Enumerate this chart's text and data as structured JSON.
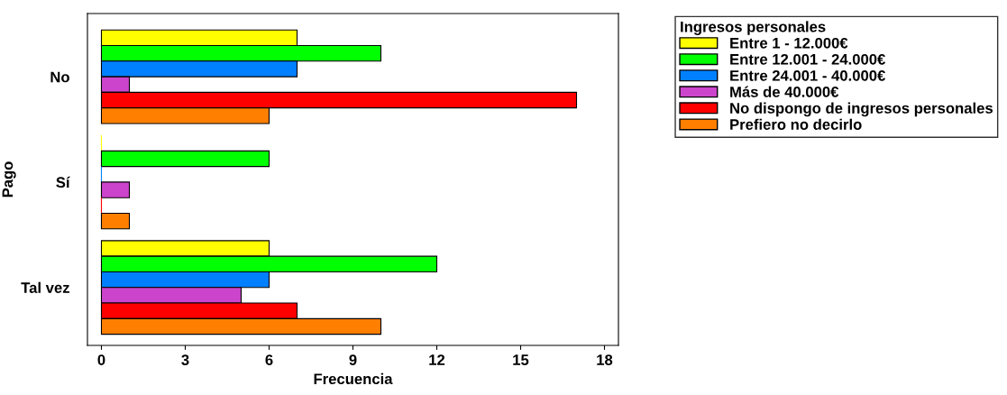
{
  "chart_data": {
    "type": "bar",
    "orientation": "horizontal",
    "xlabel": "Frecuencia",
    "ylabel": "Pago",
    "legend_title": "Ingresos personales",
    "legend": "top right",
    "categories": [
      "No",
      "Sí",
      "Tal vez"
    ],
    "series": [
      {
        "name": "Entre 1 - 12.000€",
        "color": "#ffff00",
        "values": [
          7,
          0,
          6
        ]
      },
      {
        "name": "Entre 12.001 - 24.000€",
        "color": "#00ff00",
        "values": [
          10,
          6,
          12
        ]
      },
      {
        "name": "Entre 24.001 - 40.000€",
        "color": "#0080ff",
        "values": [
          7,
          0,
          6
        ]
      },
      {
        "name": "Más de 40.000€",
        "color": "#cc44cc",
        "values": [
          1,
          1,
          5
        ]
      },
      {
        "name": "No dispongo de ingresos personales",
        "color": "#ff0000",
        "values": [
          17,
          0,
          7
        ]
      },
      {
        "name": "Prefiero no decirlo",
        "color": "#ff8000",
        "values": [
          6,
          1,
          10
        ]
      }
    ],
    "xlim": [
      -0.5,
      18.5
    ],
    "xticks": [
      0,
      3,
      6,
      9,
      12,
      15,
      18
    ],
    "grid": false
  }
}
